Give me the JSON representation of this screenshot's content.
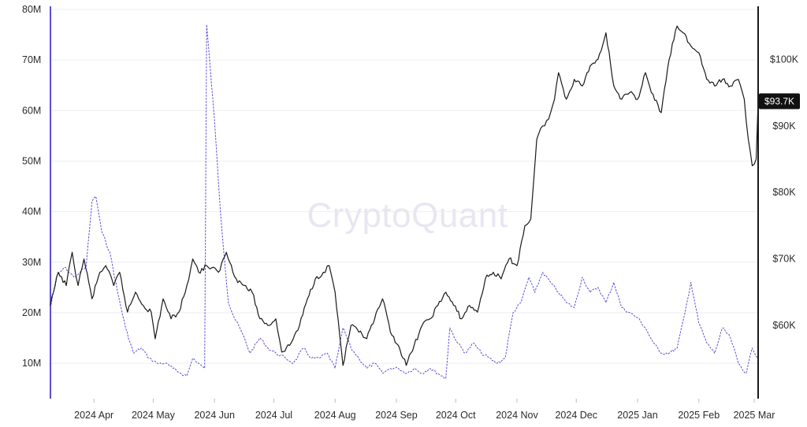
{
  "watermark": "CryptoQuant",
  "colors": {
    "background": "#ffffff",
    "grid": "#eeeeee",
    "volume_series": "#5b4fd6",
    "price_series": "#1a1a1a",
    "left_axis": "#5b4fd6",
    "right_axis": "#1a1a1a",
    "price_tag_bg": "#111111"
  },
  "chart_data": {
    "type": "line",
    "grid": true,
    "x_ticks": [
      "2024 Apr",
      "2024 May",
      "2024 Jun",
      "2024 Jul",
      "2024 Aug",
      "2024 Sep",
      "2024 Oct",
      "2024 Nov",
      "2024 Dec",
      "2025 Jan",
      "2025 Feb",
      "2025 Mar"
    ],
    "x_range": [
      "2024-03-10",
      "2025-03-03"
    ],
    "y_left": {
      "ticks": [
        "10M",
        "20M",
        "30M",
        "40M",
        "50M",
        "60M",
        "70M",
        "80M"
      ],
      "values": [
        10,
        20,
        30,
        40,
        50,
        60,
        70,
        80
      ],
      "range": [
        3,
        80
      ],
      "unit": "M"
    },
    "y_right": {
      "ticks": [
        "$60K",
        "$70K",
        "$80K",
        "$90K",
        "$100K"
      ],
      "values": [
        60,
        70,
        80,
        90,
        100
      ],
      "range": [
        49,
        107.5
      ],
      "unit": "K"
    },
    "current_price_label": "$93.7K",
    "current_price_value": 93.7,
    "series": [
      {
        "axis": "left",
        "style": "dashed",
        "points": [
          [
            "2024-03-10",
            21
          ],
          [
            "2024-03-13",
            27
          ],
          [
            "2024-03-17",
            29
          ],
          [
            "2024-03-22",
            27
          ],
          [
            "2024-03-25",
            28
          ],
          [
            "2024-03-28",
            29
          ],
          [
            "2024-03-31",
            42
          ],
          [
            "2024-04-02",
            43
          ],
          [
            "2024-04-05",
            36
          ],
          [
            "2024-04-09",
            32
          ],
          [
            "2024-04-13",
            24
          ],
          [
            "2024-04-17",
            17
          ],
          [
            "2024-04-21",
            12
          ],
          [
            "2024-04-25",
            13
          ],
          [
            "2024-04-29",
            11
          ],
          [
            "2024-05-03",
            10
          ],
          [
            "2024-05-07",
            10
          ],
          [
            "2024-05-11",
            9
          ],
          [
            "2024-05-15",
            8
          ],
          [
            "2024-05-18",
            7.5
          ],
          [
            "2024-05-21",
            11
          ],
          [
            "2024-05-24",
            10
          ],
          [
            "2024-05-27",
            9
          ],
          [
            "2024-05-28",
            77
          ],
          [
            "2024-06-01",
            58
          ],
          [
            "2024-06-04",
            40
          ],
          [
            "2024-06-08",
            22
          ],
          [
            "2024-06-11",
            19
          ],
          [
            "2024-06-15",
            16
          ],
          [
            "2024-06-19",
            12
          ],
          [
            "2024-06-24",
            15
          ],
          [
            "2024-06-28",
            13
          ],
          [
            "2024-07-02",
            12
          ],
          [
            "2024-07-07",
            11
          ],
          [
            "2024-07-11",
            10
          ],
          [
            "2024-07-16",
            13
          ],
          [
            "2024-07-20",
            11
          ],
          [
            "2024-07-24",
            11
          ],
          [
            "2024-07-28",
            12
          ],
          [
            "2024-08-01",
            9
          ],
          [
            "2024-08-05",
            17
          ],
          [
            "2024-08-09",
            13
          ],
          [
            "2024-08-13",
            11
          ],
          [
            "2024-08-17",
            9
          ],
          [
            "2024-08-21",
            10
          ],
          [
            "2024-08-25",
            8
          ],
          [
            "2024-08-29",
            9
          ],
          [
            "2024-09-02",
            9
          ],
          [
            "2024-09-06",
            8
          ],
          [
            "2024-09-10",
            9
          ],
          [
            "2024-09-14",
            8
          ],
          [
            "2024-09-18",
            9
          ],
          [
            "2024-09-22",
            8
          ],
          [
            "2024-09-26",
            7
          ],
          [
            "2024-09-28",
            17
          ],
          [
            "2024-10-02",
            14
          ],
          [
            "2024-10-06",
            12
          ],
          [
            "2024-10-10",
            14
          ],
          [
            "2024-10-14",
            12
          ],
          [
            "2024-10-18",
            11
          ],
          [
            "2024-10-22",
            10
          ],
          [
            "2024-10-26",
            11
          ],
          [
            "2024-10-30",
            20
          ],
          [
            "2024-11-03",
            22
          ],
          [
            "2024-11-07",
            27
          ],
          [
            "2024-11-10",
            24
          ],
          [
            "2024-11-14",
            28
          ],
          [
            "2024-11-18",
            26
          ],
          [
            "2024-11-22",
            24
          ],
          [
            "2024-11-26",
            22
          ],
          [
            "2024-11-30",
            21
          ],
          [
            "2024-12-04",
            27
          ],
          [
            "2024-12-08",
            24
          ],
          [
            "2024-12-12",
            25
          ],
          [
            "2024-12-16",
            22
          ],
          [
            "2024-12-20",
            26
          ],
          [
            "2024-12-24",
            21
          ],
          [
            "2024-12-28",
            20
          ],
          [
            "2025-01-01",
            19
          ],
          [
            "2025-01-05",
            17
          ],
          [
            "2025-01-09",
            14
          ],
          [
            "2025-01-13",
            12
          ],
          [
            "2025-01-17",
            12
          ],
          [
            "2025-01-21",
            13
          ],
          [
            "2025-01-25",
            20
          ],
          [
            "2025-01-28",
            26
          ],
          [
            "2025-02-01",
            18
          ],
          [
            "2025-02-05",
            14
          ],
          [
            "2025-02-09",
            12
          ],
          [
            "2025-02-13",
            17
          ],
          [
            "2025-02-17",
            15
          ],
          [
            "2025-02-21",
            10
          ],
          [
            "2025-02-25",
            8
          ],
          [
            "2025-02-28",
            13
          ],
          [
            "2025-03-03",
            11
          ]
        ]
      },
      {
        "axis": "right",
        "style": "solid",
        "points": [
          [
            "2024-03-10",
            63
          ],
          [
            "2024-03-14",
            68
          ],
          [
            "2024-03-18",
            66
          ],
          [
            "2024-03-21",
            71
          ],
          [
            "2024-03-24",
            66
          ],
          [
            "2024-03-27",
            70
          ],
          [
            "2024-03-31",
            64
          ],
          [
            "2024-04-04",
            68
          ],
          [
            "2024-04-07",
            69
          ],
          [
            "2024-04-11",
            66
          ],
          [
            "2024-04-14",
            68
          ],
          [
            "2024-04-18",
            62
          ],
          [
            "2024-04-22",
            65
          ],
          [
            "2024-04-26",
            63
          ],
          [
            "2024-04-30",
            62
          ],
          [
            "2024-05-02",
            58
          ],
          [
            "2024-05-06",
            64
          ],
          [
            "2024-05-10",
            61
          ],
          [
            "2024-05-14",
            62
          ],
          [
            "2024-05-18",
            66
          ],
          [
            "2024-05-21",
            70
          ],
          [
            "2024-05-24",
            68
          ],
          [
            "2024-05-28",
            69
          ],
          [
            "2024-06-03",
            68
          ],
          [
            "2024-06-07",
            71
          ],
          [
            "2024-06-12",
            67
          ],
          [
            "2024-06-16",
            66
          ],
          [
            "2024-06-20",
            65
          ],
          [
            "2024-06-24",
            61
          ],
          [
            "2024-06-28",
            60
          ],
          [
            "2024-07-02",
            61
          ],
          [
            "2024-07-05",
            56
          ],
          [
            "2024-07-09",
            57
          ],
          [
            "2024-07-14",
            60
          ],
          [
            "2024-07-18",
            64
          ],
          [
            "2024-07-22",
            67
          ],
          [
            "2024-07-26",
            68
          ],
          [
            "2024-07-29",
            69
          ],
          [
            "2024-08-01",
            65
          ],
          [
            "2024-08-05",
            54
          ],
          [
            "2024-08-09",
            60
          ],
          [
            "2024-08-13",
            59
          ],
          [
            "2024-08-17",
            58
          ],
          [
            "2024-08-21",
            61
          ],
          [
            "2024-08-25",
            64
          ],
          [
            "2024-08-29",
            59
          ],
          [
            "2024-09-02",
            57
          ],
          [
            "2024-09-06",
            54
          ],
          [
            "2024-09-10",
            57
          ],
          [
            "2024-09-14",
            60
          ],
          [
            "2024-09-18",
            61
          ],
          [
            "2024-09-22",
            63
          ],
          [
            "2024-09-26",
            65
          ],
          [
            "2024-09-30",
            63
          ],
          [
            "2024-10-04",
            61
          ],
          [
            "2024-10-08",
            63
          ],
          [
            "2024-10-12",
            62
          ],
          [
            "2024-10-16",
            67
          ],
          [
            "2024-10-20",
            68
          ],
          [
            "2024-10-24",
            67
          ],
          [
            "2024-10-28",
            70
          ],
          [
            "2024-11-01",
            69
          ],
          [
            "2024-11-05",
            75
          ],
          [
            "2024-11-08",
            76
          ],
          [
            "2024-11-11",
            88
          ],
          [
            "2024-11-14",
            90
          ],
          [
            "2024-11-17",
            91
          ],
          [
            "2024-11-20",
            94
          ],
          [
            "2024-11-22",
            98
          ],
          [
            "2024-11-26",
            94
          ],
          [
            "2024-11-30",
            97
          ],
          [
            "2024-12-04",
            96
          ],
          [
            "2024-12-08",
            99
          ],
          [
            "2024-12-12",
            100
          ],
          [
            "2024-12-16",
            104
          ],
          [
            "2024-12-20",
            96
          ],
          [
            "2024-12-24",
            94
          ],
          [
            "2024-12-28",
            95
          ],
          [
            "2025-01-01",
            94
          ],
          [
            "2025-01-05",
            98
          ],
          [
            "2025-01-08",
            95
          ],
          [
            "2025-01-13",
            92
          ],
          [
            "2025-01-17",
            100
          ],
          [
            "2025-01-21",
            105
          ],
          [
            "2025-01-24",
            104
          ],
          [
            "2025-01-28",
            102
          ],
          [
            "2025-02-01",
            101
          ],
          [
            "2025-02-05",
            97
          ],
          [
            "2025-02-09",
            96
          ],
          [
            "2025-02-13",
            97
          ],
          [
            "2025-02-17",
            96
          ],
          [
            "2025-02-21",
            97
          ],
          [
            "2025-02-24",
            94
          ],
          [
            "2025-02-26",
            88
          ],
          [
            "2025-02-28",
            84
          ],
          [
            "2025-03-02",
            85
          ],
          [
            "2025-03-03",
            93.7
          ]
        ]
      }
    ]
  }
}
